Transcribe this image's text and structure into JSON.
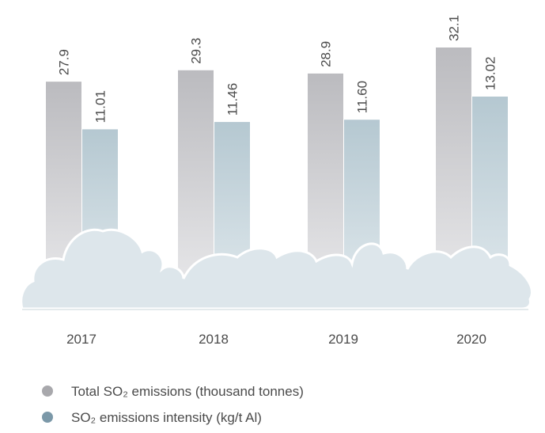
{
  "chart_data": {
    "type": "bar",
    "categories": [
      "2017",
      "2018",
      "2019",
      "2020"
    ],
    "series": [
      {
        "name": "Total SO₂ emissions (thousand tonnes)",
        "color": "#a8a8ac",
        "values": [
          27.9,
          29.3,
          28.9,
          32.1
        ]
      },
      {
        "name": "SO₂ emissions intensity (kg/t Al)",
        "color": "#7b98a8",
        "values": [
          11.01,
          11.46,
          11.6,
          13.02
        ],
        "value_labels": [
          "11.01",
          "11.46",
          "11.60",
          "13.02"
        ]
      }
    ]
  }
}
